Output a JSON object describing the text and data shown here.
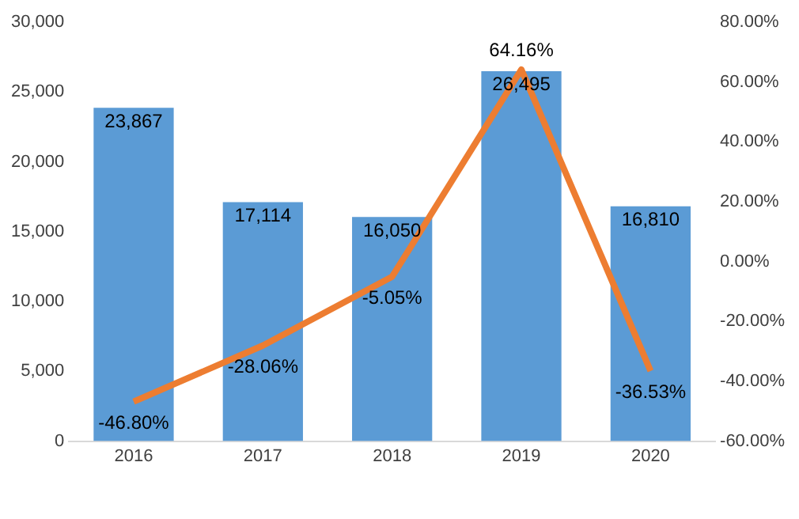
{
  "chart_data": {
    "type": "bar",
    "categories": [
      "2016",
      "2017",
      "2018",
      "2019",
      "2020"
    ],
    "series": [
      {
        "color": "#5b9bd5",
        "values": [
          23867,
          17114,
          16050,
          26495,
          16810
        ],
        "value_labels": [
          "23,867",
          "17,114",
          "16,050",
          "26,495",
          "16,810"
        ]
      },
      {
        "type": "line",
        "axis": "y2",
        "color": "#ed7d31",
        "values": [
          -46.8,
          -28.06,
          -5.05,
          64.16,
          -36.53
        ],
        "value_labels": [
          "-46.80%",
          "-28.06%",
          "-5.05%",
          "64.16%",
          "-36.53%"
        ]
      }
    ],
    "ylim": [
      0,
      30000
    ],
    "yticks": [
      {
        "value": 0,
        "label": "0"
      },
      {
        "value": 5000,
        "label": "5,000"
      },
      {
        "value": 10000,
        "label": "10,000"
      },
      {
        "value": 15000,
        "label": "15,000"
      },
      {
        "value": 20000,
        "label": "20,000"
      },
      {
        "value": 25000,
        "label": "25,000"
      },
      {
        "value": 30000,
        "label": "30,000"
      }
    ],
    "y2lim": [
      -60,
      80
    ],
    "y2ticks": [
      {
        "value": -60,
        "label": "-60.00%"
      },
      {
        "value": -40,
        "label": "-40.00%"
      },
      {
        "value": -20,
        "label": "-20.00%"
      },
      {
        "value": 0,
        "label": "0.00%"
      },
      {
        "value": 20,
        "label": "20.00%"
      },
      {
        "value": 40,
        "label": "40.00%"
      },
      {
        "value": 60,
        "label": "60.00%"
      },
      {
        "value": 80,
        "label": "80.00%"
      }
    ],
    "grid": false,
    "legend": false,
    "marker": "none",
    "line_style": "solid"
  }
}
